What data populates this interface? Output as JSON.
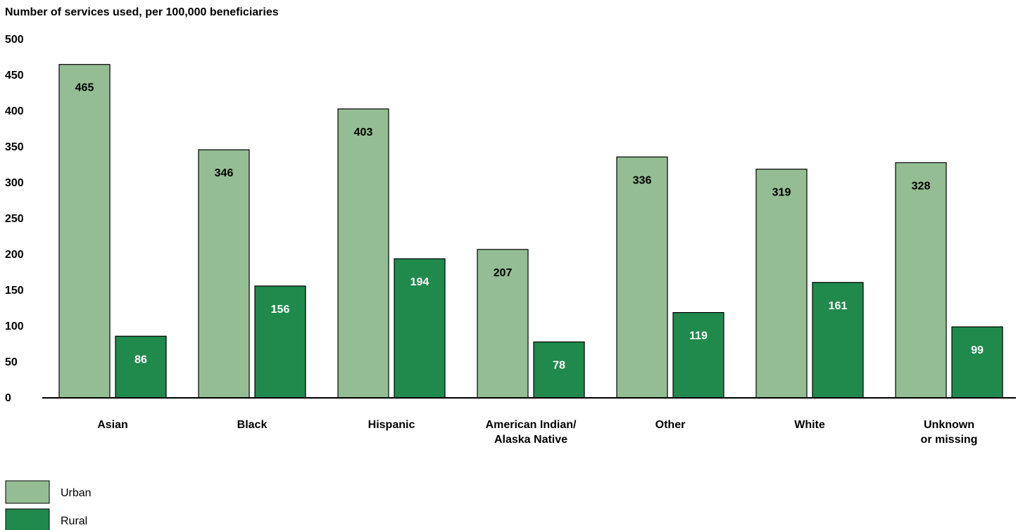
{
  "chart_data": {
    "type": "bar",
    "ylabel": "Number of services used, per 100,000 beneficiaries",
    "ylim": [
      0,
      500
    ],
    "yticks": [
      0,
      50,
      100,
      150,
      200,
      250,
      300,
      350,
      400,
      450,
      500
    ],
    "categories": [
      [
        "Asian"
      ],
      [
        "Black"
      ],
      [
        "Hispanic"
      ],
      [
        "American Indian/",
        "Alaska Native"
      ],
      [
        "Other"
      ],
      [
        "White"
      ],
      [
        "Unknown",
        "or missing"
      ]
    ],
    "series": [
      {
        "name": "Urban",
        "color": "#94bd93",
        "values": [
          465,
          346,
          403,
          207,
          336,
          319,
          328
        ]
      },
      {
        "name": "Rural",
        "color": "#1f8a4c",
        "values": [
          86,
          156,
          194,
          78,
          119,
          161,
          99
        ]
      }
    ],
    "grid": false,
    "legend_position": "bottom-left"
  }
}
